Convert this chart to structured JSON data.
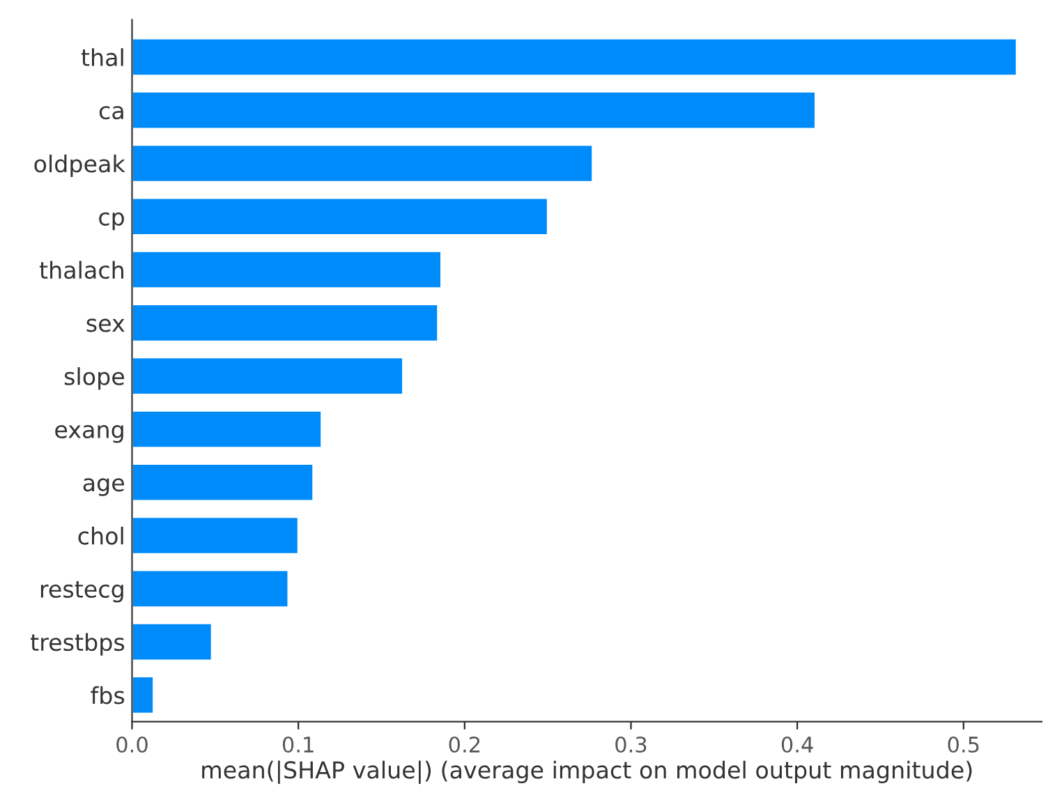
{
  "chart_data": {
    "type": "bar",
    "orientation": "horizontal",
    "xlabel": "mean(|SHAP value|) (average impact on model output magnitude)",
    "categories": [
      "thal",
      "ca",
      "oldpeak",
      "cp",
      "thalach",
      "sex",
      "slope",
      "exang",
      "age",
      "chol",
      "restecg",
      "trestbps",
      "fbs"
    ],
    "values": [
      0.532,
      0.411,
      0.277,
      0.25,
      0.186,
      0.184,
      0.163,
      0.114,
      0.109,
      0.1,
      0.094,
      0.048,
      0.013
    ],
    "color": "#008bfb",
    "xlim": [
      0,
      0.547
    ],
    "xticks": [
      {
        "value": 0,
        "label": "0.0"
      },
      0.1,
      0.2,
      0.3,
      0.4,
      0.5
    ],
    "grid": false,
    "legend": false
  }
}
